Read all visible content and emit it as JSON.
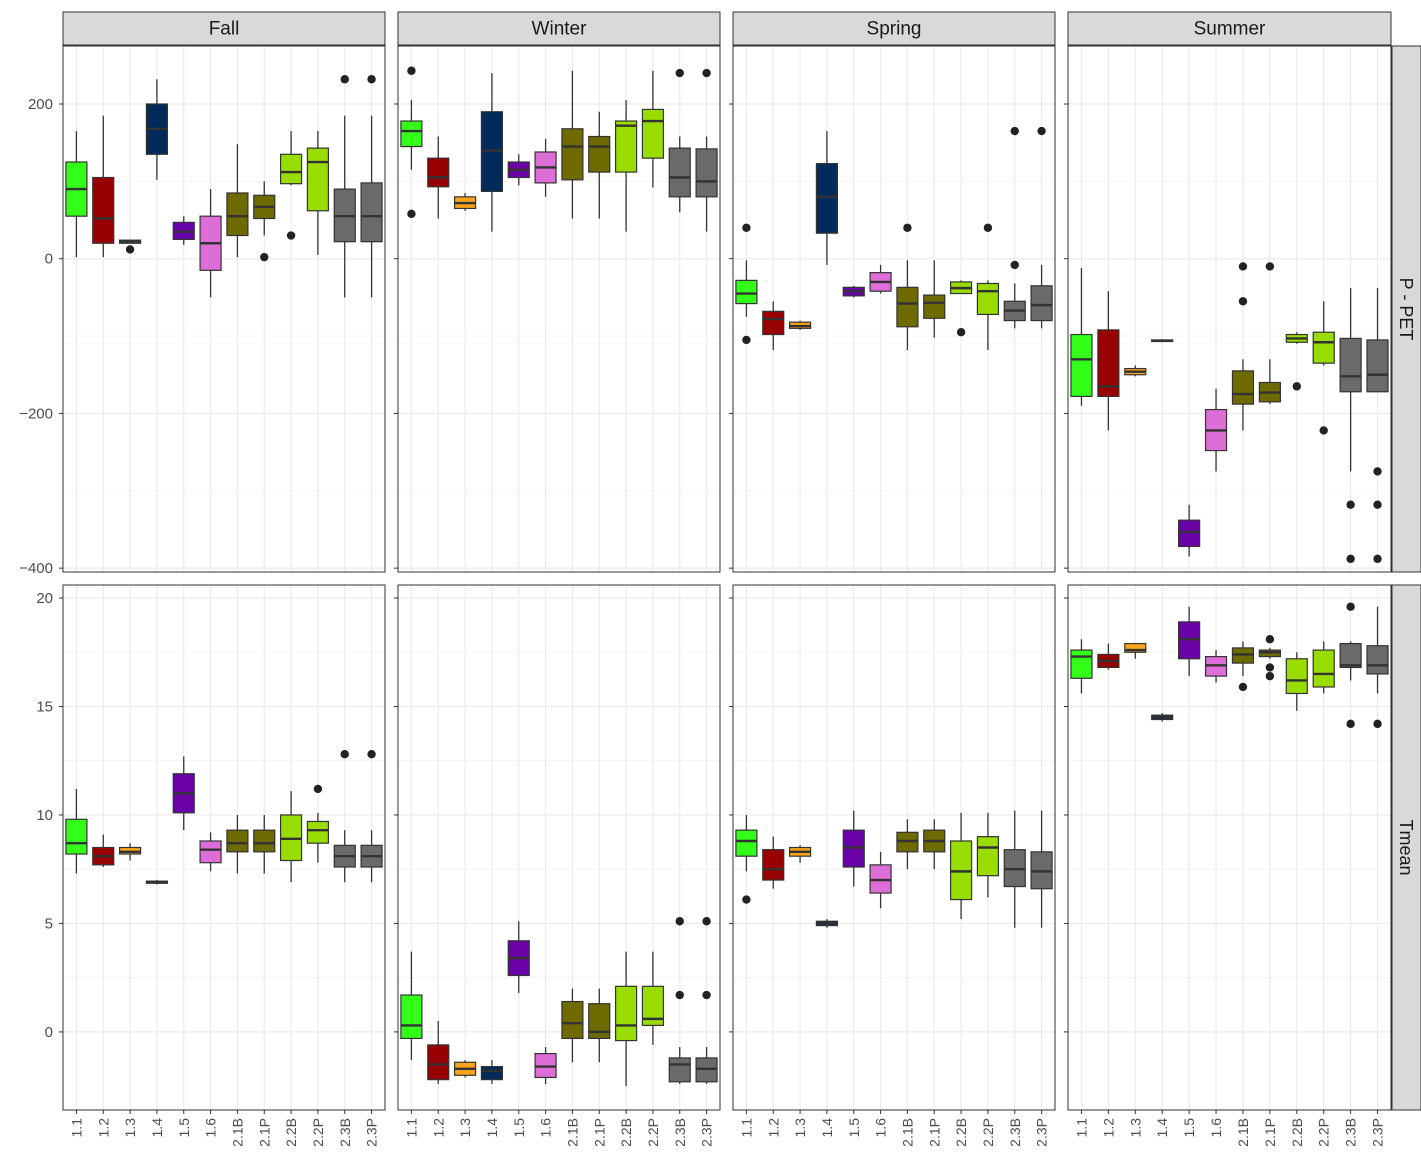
{
  "chart_data": {
    "type": "boxplot",
    "facet_columns": [
      "Fall",
      "Winter",
      "Spring",
      "Summer"
    ],
    "facet_rows": [
      "P - PET",
      "Tmean"
    ],
    "categories": [
      "1.1",
      "1.2",
      "1.3",
      "1.4",
      "1.5",
      "1.6",
      "2.1B",
      "2.1P",
      "2.2B",
      "2.2P",
      "2.3B",
      "2.3P"
    ],
    "category_colors": [
      "#33ff19",
      "#990000",
      "#ffa31a",
      "#002a5c",
      "#6a00a8",
      "#dd6ed8",
      "#6e6a00",
      "#6e6a00",
      "#99dd00",
      "#99dd00",
      "#6a6a6a",
      "#6a6a6a"
    ],
    "y_axes": {
      "P - PET": {
        "ylim": [
          -405,
          275
        ],
        "ticks": [
          200,
          0,
          -200,
          -400
        ],
        "tick_labels": [
          "200",
          "0",
          "−200",
          "−400"
        ]
      },
      "Tmean": {
        "ylim": [
          -3.6,
          20.6
        ],
        "ticks": [
          20,
          15,
          10,
          5,
          0
        ],
        "tick_labels": [
          "20",
          "15",
          "10",
          "5",
          "0"
        ]
      }
    },
    "grid": true,
    "panels": {
      "P - PET": {
        "Fall": [
          {
            "min": 2,
            "q1": 55,
            "median": 90,
            "q3": 125,
            "max": 165,
            "outliers": []
          },
          {
            "min": 2,
            "q1": 20,
            "median": 52,
            "q3": 105,
            "max": 185,
            "outliers": []
          },
          {
            "min": 20,
            "q1": 20,
            "median": 22,
            "q3": 24,
            "max": 24,
            "outliers": [
              12
            ]
          },
          {
            "min": 102,
            "q1": 135,
            "median": 168,
            "q3": 200,
            "max": 232,
            "outliers": []
          },
          {
            "min": 18,
            "q1": 25,
            "median": 35,
            "q3": 47,
            "max": 55,
            "outliers": []
          },
          {
            "min": -50,
            "q1": -15,
            "median": 20,
            "q3": 55,
            "max": 90,
            "outliers": []
          },
          {
            "min": 2,
            "q1": 30,
            "median": 55,
            "q3": 85,
            "max": 148,
            "outliers": []
          },
          {
            "min": 30,
            "q1": 52,
            "median": 67,
            "q3": 82,
            "max": 100,
            "outliers": [
              2
            ]
          },
          {
            "min": 95,
            "q1": 97,
            "median": 112,
            "q3": 135,
            "max": 165,
            "outliers": [
              30
            ]
          },
          {
            "min": 5,
            "q1": 62,
            "median": 125,
            "q3": 143,
            "max": 165,
            "outliers": []
          },
          {
            "min": -50,
            "q1": 22,
            "median": 55,
            "q3": 90,
            "max": 185,
            "outliers": [
              232
            ]
          },
          {
            "min": -50,
            "q1": 22,
            "median": 55,
            "q3": 98,
            "max": 185,
            "outliers": [
              232
            ]
          }
        ],
        "Winter": [
          {
            "min": 115,
            "q1": 145,
            "median": 165,
            "q3": 178,
            "max": 205,
            "outliers": [
              243,
              58
            ]
          },
          {
            "min": 52,
            "q1": 93,
            "median": 105,
            "q3": 130,
            "max": 158,
            "outliers": []
          },
          {
            "min": 62,
            "q1": 65,
            "median": 72,
            "q3": 80,
            "max": 85,
            "outliers": []
          },
          {
            "min": 35,
            "q1": 87,
            "median": 140,
            "q3": 190,
            "max": 240,
            "outliers": []
          },
          {
            "min": 95,
            "q1": 105,
            "median": 115,
            "q3": 125,
            "max": 135,
            "outliers": []
          },
          {
            "min": 80,
            "q1": 98,
            "median": 118,
            "q3": 138,
            "max": 155,
            "outliers": []
          },
          {
            "min": 52,
            "q1": 102,
            "median": 145,
            "q3": 168,
            "max": 243,
            "outliers": []
          },
          {
            "min": 52,
            "q1": 112,
            "median": 145,
            "q3": 158,
            "max": 190,
            "outliers": []
          },
          {
            "min": 35,
            "q1": 112,
            "median": 172,
            "q3": 178,
            "max": 205,
            "outliers": []
          },
          {
            "min": 92,
            "q1": 130,
            "median": 178,
            "q3": 193,
            "max": 243,
            "outliers": []
          },
          {
            "min": 60,
            "q1": 80,
            "median": 105,
            "q3": 143,
            "max": 158,
            "outliers": [
              240
            ]
          },
          {
            "min": 35,
            "q1": 80,
            "median": 100,
            "q3": 142,
            "max": 158,
            "outliers": [
              240
            ]
          }
        ],
        "Spring": [
          {
            "min": -75,
            "q1": -58,
            "median": -45,
            "q3": -28,
            "max": -2,
            "outliers": [
              40,
              -105
            ]
          },
          {
            "min": -118,
            "q1": -98,
            "median": -78,
            "q3": -68,
            "max": -55,
            "outliers": []
          },
          {
            "min": -92,
            "q1": -90,
            "median": -87,
            "q3": -82,
            "max": -80,
            "outliers": []
          },
          {
            "min": -8,
            "q1": 33,
            "median": 80,
            "q3": 123,
            "max": 165,
            "outliers": []
          },
          {
            "min": -50,
            "q1": -48,
            "median": -42,
            "q3": -37,
            "max": -35,
            "outliers": []
          },
          {
            "min": -45,
            "q1": -42,
            "median": -30,
            "q3": -18,
            "max": -8,
            "outliers": []
          },
          {
            "min": -118,
            "q1": -88,
            "median": -58,
            "q3": -37,
            "max": -2,
            "outliers": [
              40
            ]
          },
          {
            "min": -102,
            "q1": -77,
            "median": -57,
            "q3": -47,
            "max": -2,
            "outliers": []
          },
          {
            "min": -45,
            "q1": -45,
            "median": -38,
            "q3": -30,
            "max": -28,
            "outliers": [
              -95
            ]
          },
          {
            "min": -118,
            "q1": -72,
            "median": -42,
            "q3": -32,
            "max": -28,
            "outliers": [
              40
            ]
          },
          {
            "min": -90,
            "q1": -80,
            "median": -67,
            "q3": -55,
            "max": -32,
            "outliers": [
              165,
              -8
            ]
          },
          {
            "min": -90,
            "q1": -80,
            "median": -60,
            "q3": -35,
            "max": -8,
            "outliers": [
              165
            ]
          }
        ],
        "Summer": [
          {
            "min": -190,
            "q1": -178,
            "median": -130,
            "q3": -98,
            "max": -12,
            "outliers": []
          },
          {
            "min": -222,
            "q1": -178,
            "median": -165,
            "q3": -92,
            "max": -42,
            "outliers": []
          },
          {
            "min": -152,
            "q1": -150,
            "median": -146,
            "q3": -142,
            "max": -138,
            "outliers": []
          },
          {
            "min": -108,
            "q1": -107,
            "median": -106,
            "q3": -105,
            "max": -104,
            "outliers": []
          },
          {
            "min": -385,
            "q1": -372,
            "median": -353,
            "q3": -338,
            "max": -318,
            "outliers": []
          },
          {
            "min": -275,
            "q1": -248,
            "median": -222,
            "q3": -195,
            "max": -168,
            "outliers": []
          },
          {
            "min": -222,
            "q1": -188,
            "median": -175,
            "q3": -145,
            "max": -130,
            "outliers": [
              -10,
              -55
            ]
          },
          {
            "min": -188,
            "q1": -185,
            "median": -173,
            "q3": -160,
            "max": -130,
            "outliers": [
              -10
            ]
          },
          {
            "min": -110,
            "q1": -108,
            "median": -103,
            "q3": -98,
            "max": -95,
            "outliers": [
              -165
            ]
          },
          {
            "min": -138,
            "q1": -135,
            "median": -108,
            "q3": -95,
            "max": -55,
            "outliers": [
              -222
            ]
          },
          {
            "min": -275,
            "q1": -172,
            "median": -152,
            "q3": -103,
            "max": -38,
            "outliers": [
              -318,
              -388
            ]
          },
          {
            "min": -172,
            "q1": -172,
            "median": -150,
            "q3": -105,
            "max": -38,
            "outliers": [
              -275,
              -318,
              -388
            ]
          }
        ]
      },
      "Tmean": {
        "Fall": [
          {
            "min": 7.3,
            "q1": 8.2,
            "median": 8.7,
            "q3": 9.8,
            "max": 11.2,
            "outliers": []
          },
          {
            "min": 7.6,
            "q1": 7.7,
            "median": 8.1,
            "q3": 8.5,
            "max": 9.1,
            "outliers": []
          },
          {
            "min": 7.9,
            "q1": 8.2,
            "median": 8.3,
            "q3": 8.5,
            "max": 8.7,
            "outliers": []
          },
          {
            "min": 6.8,
            "q1": 6.85,
            "median": 6.9,
            "q3": 6.95,
            "max": 7.0,
            "outliers": []
          },
          {
            "min": 9.3,
            "q1": 10.1,
            "median": 11.0,
            "q3": 11.9,
            "max": 12.7,
            "outliers": []
          },
          {
            "min": 7.4,
            "q1": 7.8,
            "median": 8.4,
            "q3": 8.8,
            "max": 9.2,
            "outliers": []
          },
          {
            "min": 7.3,
            "q1": 8.3,
            "median": 8.7,
            "q3": 9.3,
            "max": 10.0,
            "outliers": []
          },
          {
            "min": 7.3,
            "q1": 8.3,
            "median": 8.7,
            "q3": 9.3,
            "max": 10.0,
            "outliers": []
          },
          {
            "min": 6.9,
            "q1": 7.9,
            "median": 8.9,
            "q3": 10.0,
            "max": 11.1,
            "outliers": []
          },
          {
            "min": 7.8,
            "q1": 8.7,
            "median": 9.3,
            "q3": 9.7,
            "max": 10.1,
            "outliers": [
              11.2
            ]
          },
          {
            "min": 6.9,
            "q1": 7.6,
            "median": 8.1,
            "q3": 8.6,
            "max": 9.3,
            "outliers": [
              12.8
            ]
          },
          {
            "min": 6.9,
            "q1": 7.6,
            "median": 8.1,
            "q3": 8.6,
            "max": 9.3,
            "outliers": [
              12.8
            ]
          }
        ],
        "Winter": [
          {
            "min": -1.3,
            "q1": -0.3,
            "median": 0.3,
            "q3": 1.7,
            "max": 3.7,
            "outliers": []
          },
          {
            "min": -2.4,
            "q1": -2.2,
            "median": -1.5,
            "q3": -0.6,
            "max": 0.5,
            "outliers": []
          },
          {
            "min": -2.1,
            "q1": -2.0,
            "median": -1.7,
            "q3": -1.4,
            "max": -1.3,
            "outliers": []
          },
          {
            "min": -2.4,
            "q1": -2.2,
            "median": -1.8,
            "q3": -1.6,
            "max": -1.3,
            "outliers": []
          },
          {
            "min": 1.8,
            "q1": 2.6,
            "median": 3.4,
            "q3": 4.2,
            "max": 5.1,
            "outliers": []
          },
          {
            "min": -2.4,
            "q1": -2.1,
            "median": -1.6,
            "q3": -1.0,
            "max": -0.7,
            "outliers": []
          },
          {
            "min": -1.4,
            "q1": -0.3,
            "median": 0.4,
            "q3": 1.4,
            "max": 2.0,
            "outliers": []
          },
          {
            "min": -1.4,
            "q1": -0.3,
            "median": 0.0,
            "q3": 1.3,
            "max": 2.0,
            "outliers": []
          },
          {
            "min": -2.5,
            "q1": -0.4,
            "median": 0.3,
            "q3": 2.1,
            "max": 3.7,
            "outliers": []
          },
          {
            "min": -0.6,
            "q1": 0.3,
            "median": 0.6,
            "q3": 2.1,
            "max": 3.7,
            "outliers": []
          },
          {
            "min": -2.4,
            "q1": -2.3,
            "median": -1.5,
            "q3": -1.2,
            "max": -0.7,
            "outliers": [
              5.1,
              1.7
            ]
          },
          {
            "min": -2.4,
            "q1": -2.3,
            "median": -1.7,
            "q3": -1.2,
            "max": -0.7,
            "outliers": [
              5.1,
              1.7
            ]
          }
        ],
        "Spring": [
          {
            "min": 7.4,
            "q1": 8.1,
            "median": 8.8,
            "q3": 9.3,
            "max": 10.0,
            "outliers": [
              6.1
            ]
          },
          {
            "min": 6.6,
            "q1": 7.0,
            "median": 7.5,
            "q3": 8.4,
            "max": 9.0,
            "outliers": []
          },
          {
            "min": 7.8,
            "q1": 8.1,
            "median": 8.3,
            "q3": 8.5,
            "max": 8.6,
            "outliers": []
          },
          {
            "min": 4.8,
            "q1": 4.9,
            "median": 5.0,
            "q3": 5.1,
            "max": 5.2,
            "outliers": []
          },
          {
            "min": 6.7,
            "q1": 7.6,
            "median": 8.5,
            "q3": 9.3,
            "max": 10.2,
            "outliers": []
          },
          {
            "min": 5.7,
            "q1": 6.4,
            "median": 7.0,
            "q3": 7.7,
            "max": 8.3,
            "outliers": []
          },
          {
            "min": 7.5,
            "q1": 8.3,
            "median": 8.8,
            "q3": 9.2,
            "max": 9.8,
            "outliers": []
          },
          {
            "min": 7.5,
            "q1": 8.3,
            "median": 8.8,
            "q3": 9.3,
            "max": 9.8,
            "outliers": []
          },
          {
            "min": 5.2,
            "q1": 6.1,
            "median": 7.4,
            "q3": 8.8,
            "max": 10.1,
            "outliers": []
          },
          {
            "min": 6.2,
            "q1": 7.2,
            "median": 8.5,
            "q3": 9.0,
            "max": 10.1,
            "outliers": []
          },
          {
            "min": 4.8,
            "q1": 6.7,
            "median": 7.5,
            "q3": 8.4,
            "max": 10.2,
            "outliers": []
          },
          {
            "min": 4.8,
            "q1": 6.6,
            "median": 7.4,
            "q3": 8.3,
            "max": 10.2,
            "outliers": []
          }
        ],
        "Summer": [
          {
            "min": 15.6,
            "q1": 16.3,
            "median": 17.3,
            "q3": 17.6,
            "max": 18.1,
            "outliers": []
          },
          {
            "min": 16.7,
            "q1": 16.8,
            "median": 17.1,
            "q3": 17.4,
            "max": 17.9,
            "outliers": []
          },
          {
            "min": 17.2,
            "q1": 17.5,
            "median": 17.6,
            "q3": 17.9,
            "max": 17.9,
            "outliers": []
          },
          {
            "min": 14.3,
            "q1": 14.4,
            "median": 14.5,
            "q3": 14.6,
            "max": 14.7,
            "outliers": []
          },
          {
            "min": 16.4,
            "q1": 17.2,
            "median": 18.1,
            "q3": 18.9,
            "max": 19.6,
            "outliers": []
          },
          {
            "min": 16.1,
            "q1": 16.4,
            "median": 16.9,
            "q3": 17.3,
            "max": 17.6,
            "outliers": []
          },
          {
            "min": 16.4,
            "q1": 17.0,
            "median": 17.4,
            "q3": 17.7,
            "max": 18.0,
            "outliers": [
              15.9
            ]
          },
          {
            "min": 17.2,
            "q1": 17.3,
            "median": 17.5,
            "q3": 17.6,
            "max": 17.7,
            "outliers": [
              18.1,
              16.8,
              16.4
            ]
          },
          {
            "min": 14.8,
            "q1": 15.6,
            "median": 16.2,
            "q3": 17.2,
            "max": 17.5,
            "outliers": []
          },
          {
            "min": 15.6,
            "q1": 15.9,
            "median": 16.5,
            "q3": 17.6,
            "max": 18.0,
            "outliers": []
          },
          {
            "min": 16.2,
            "q1": 16.8,
            "median": 16.9,
            "q3": 17.9,
            "max": 18.0,
            "outliers": [
              19.6,
              14.2
            ]
          },
          {
            "min": 15.6,
            "q1": 16.5,
            "median": 16.9,
            "q3": 17.8,
            "max": 19.6,
            "outliers": [
              14.2
            ]
          }
        ]
      }
    }
  }
}
